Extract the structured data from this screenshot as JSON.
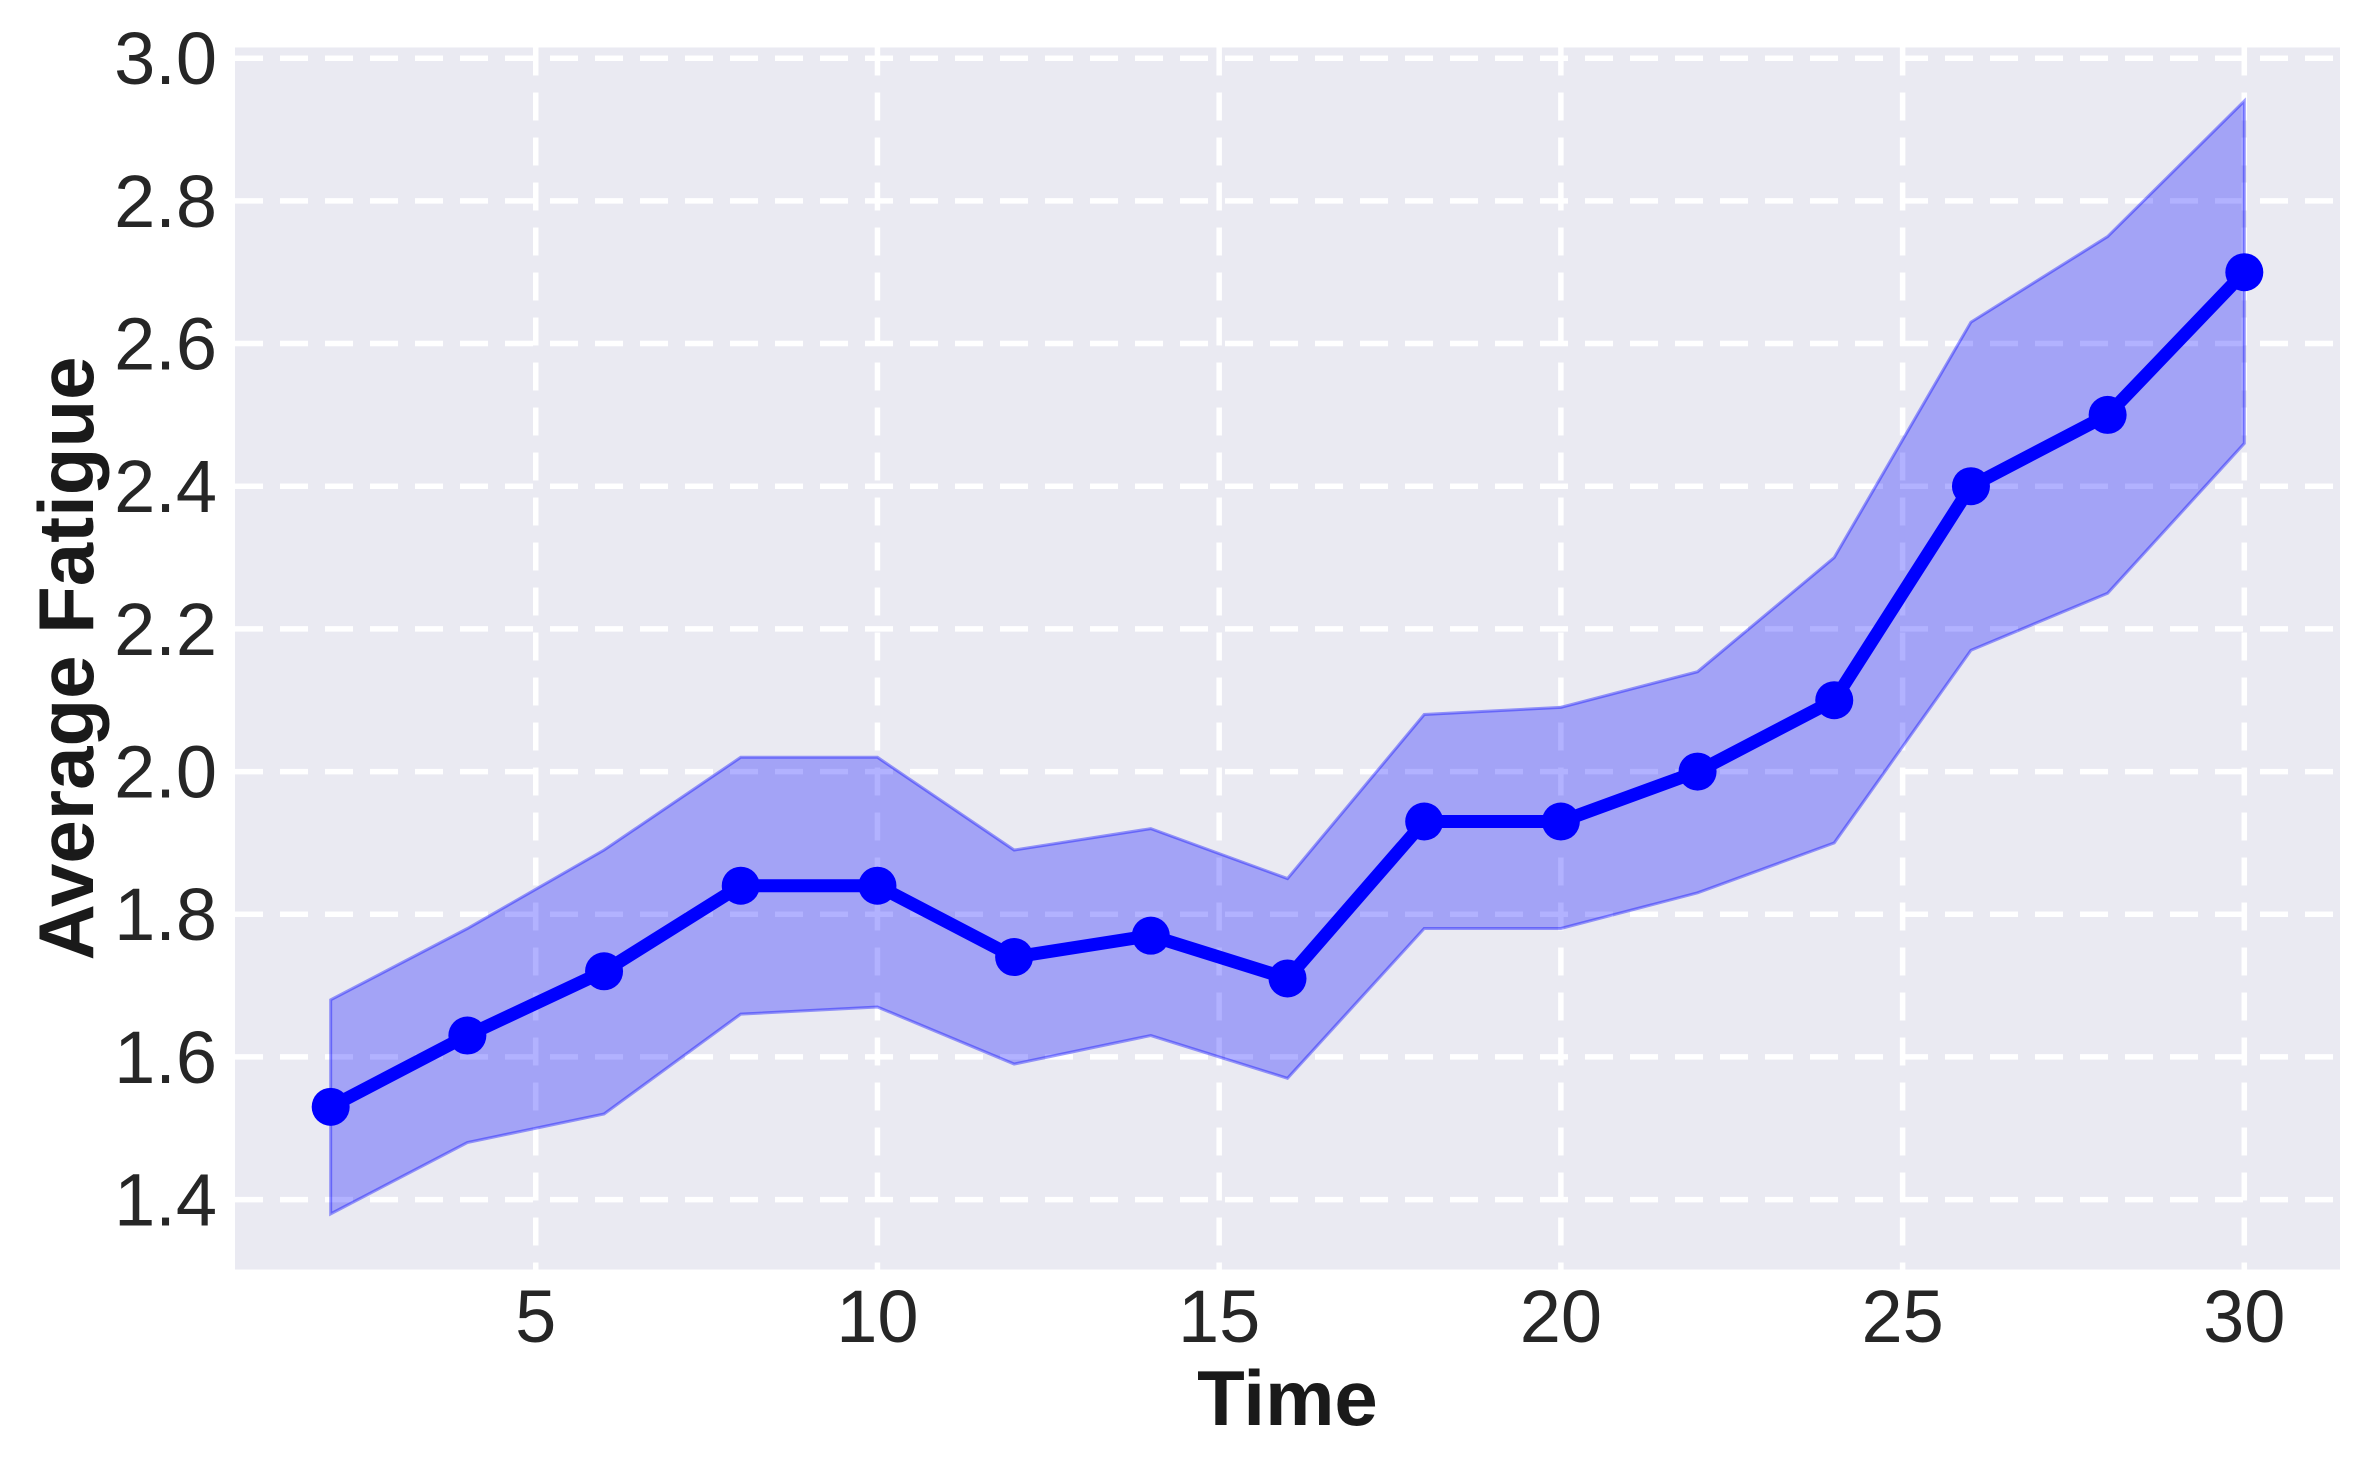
{
  "chart_data": {
    "type": "line",
    "title": "",
    "xlabel": "Time",
    "ylabel": "Average Fatigue",
    "x": [
      2,
      4,
      6,
      8,
      10,
      12,
      14,
      16,
      18,
      20,
      22,
      24,
      26,
      28,
      30
    ],
    "series": [
      {
        "name": "Average Fatigue",
        "values": [
          1.53,
          1.63,
          1.72,
          1.84,
          1.84,
          1.74,
          1.77,
          1.71,
          1.93,
          1.93,
          2.0,
          2.1,
          2.4,
          2.5,
          2.7
        ],
        "band_lower": [
          1.38,
          1.48,
          1.52,
          1.66,
          1.67,
          1.59,
          1.63,
          1.57,
          1.78,
          1.78,
          1.83,
          1.9,
          2.17,
          2.25,
          2.46
        ],
        "band_upper": [
          1.68,
          1.78,
          1.89,
          2.02,
          2.02,
          1.89,
          1.92,
          1.85,
          2.08,
          2.09,
          2.14,
          2.3,
          2.63,
          2.75,
          2.94
        ]
      }
    ],
    "xticks": [
      5,
      10,
      15,
      20,
      25,
      30
    ],
    "yticks": [
      1.4,
      1.6,
      1.8,
      2.0,
      2.2,
      2.4,
      2.6,
      2.8,
      3.0
    ],
    "xlim": [
      0.6,
      31.4
    ],
    "ylim": [
      1.302,
      3.015
    ],
    "grid": "white-dashed",
    "legend": false,
    "colors": {
      "line": "#0000ff",
      "marker": "#0000ff",
      "band": "#0000ff",
      "band_alpha": 0.3,
      "band_edge_alpha": 0.38,
      "plot_background": "#eaeaf2",
      "figure_background": "#ffffff",
      "grid": "#ffffff",
      "tick_label": "#262626",
      "axis_label": "#1a1a1a"
    }
  }
}
